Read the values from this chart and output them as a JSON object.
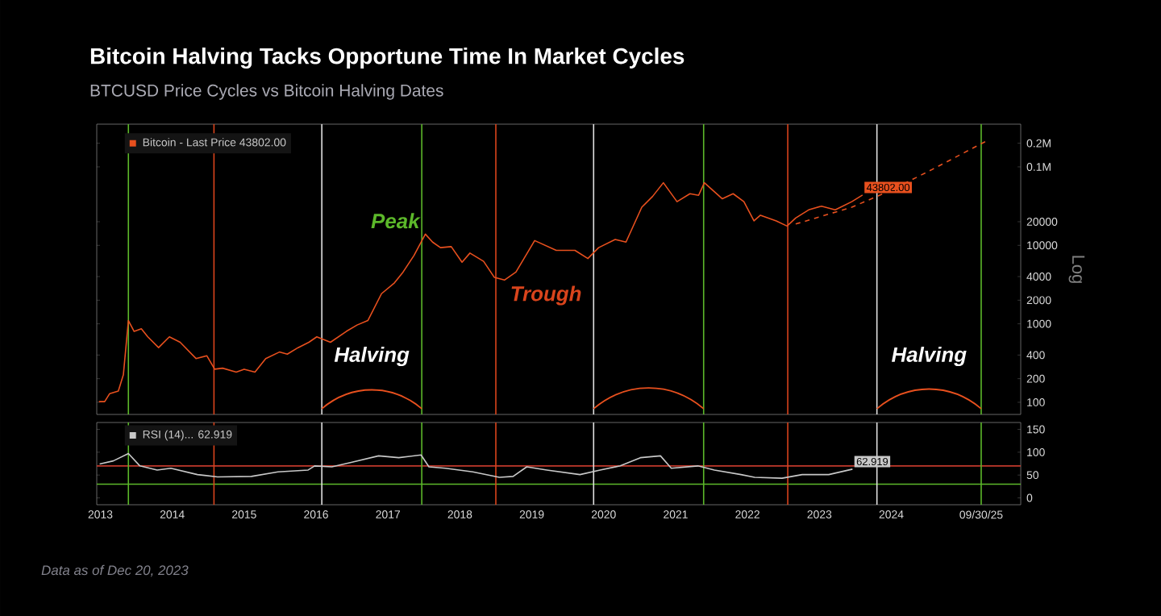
{
  "chart_data": [
    {
      "type": "line",
      "title": "Bitcoin Halving Tacks Opportune Time In Market Cycles",
      "subtitle": "BTCUSD Price Cycles vs Bitcoin Halving Dates",
      "ylabel": "Log",
      "log": "y",
      "xlim": [
        2013.45,
        2026.3
      ],
      "ylim": [
        70,
        350000
      ],
      "yticks": [
        100,
        200,
        400,
        1000,
        2000,
        4000,
        10000,
        20000,
        {
          "value": 100000,
          "label": "0.1M"
        },
        {
          "value": 200000,
          "label": "0.2M"
        }
      ],
      "tick_labels": "y",
      "legend": "top left",
      "series": [
        {
          "name": "Bitcoin - Last Price 43802.00",
          "color": "#e8501e",
          "x": [
            2013.48,
            2013.56,
            2013.63,
            2013.75,
            2013.82,
            2013.89,
            2013.97,
            2014.07,
            2014.16,
            2014.31,
            2014.46,
            2014.61,
            2014.83,
            2014.98,
            2015.09,
            2015.2,
            2015.39,
            2015.5,
            2015.65,
            2015.8,
            2015.99,
            2016.1,
            2016.25,
            2016.4,
            2016.51,
            2016.7,
            2016.92,
            2017.07,
            2017.22,
            2017.41,
            2017.59,
            2017.71,
            2017.86,
            2018.02,
            2018.12,
            2018.23,
            2018.38,
            2018.53,
            2018.64,
            2018.83,
            2018.98,
            2019.12,
            2019.28,
            2019.54,
            2019.84,
            2020.1,
            2020.28,
            2020.43,
            2020.66,
            2020.81,
            2021.03,
            2021.18,
            2021.33,
            2021.52,
            2021.7,
            2021.82,
            2021.9,
            2022.15,
            2022.3,
            2022.45,
            2022.59,
            2022.68,
            2022.9,
            2023.05,
            2023.17,
            2023.35,
            2023.53,
            2023.72,
            2023.95,
            2024.1
          ],
          "values": [
            102,
            102,
            129,
            139,
            224,
            1100,
            800,
            865,
            683,
            497,
            683,
            582,
            361,
            392,
            264,
            272,
            243,
            264,
            243,
            361,
            437,
            410,
            497,
            582,
            683,
            582,
            800,
            965,
            1100,
            2420,
            3330,
            4570,
            7380,
            13900,
            11000,
            9350,
            9630,
            6100,
            7970,
            6260,
            3900,
            3610,
            4570,
            11500,
            8640,
            8640,
            6800,
            9350,
            11900,
            11000,
            30600,
            42000,
            62800,
            36000,
            45500,
            43400,
            62800,
            39200,
            45500,
            36000,
            20500,
            24200,
            20500,
            17600,
            22300,
            28300,
            31600,
            28300,
            36000,
            43802
          ],
          "value_labels": [
            null,
            null,
            null,
            null,
            null,
            null,
            null,
            null,
            null,
            null,
            null,
            null,
            null,
            null,
            null,
            null,
            null,
            null,
            null,
            null,
            null,
            null,
            null,
            null,
            null,
            null,
            null,
            null,
            null,
            null,
            null,
            null,
            null,
            null,
            null,
            null,
            null,
            null,
            null,
            null,
            null,
            null,
            null,
            null,
            null,
            null,
            null,
            null,
            null,
            null,
            null,
            null,
            null,
            null,
            null,
            null,
            null,
            null,
            null,
            null,
            null,
            null,
            null,
            null,
            null,
            null,
            null,
            null,
            null,
            "43802.00"
          ]
        },
        {
          "color": "#e8501e",
          "line_style": "dashed",
          "x": [
            2023.17,
            2023.95,
            2024.47,
            2025.07,
            2025.82
          ],
          "values": [
            18700,
            30600,
            49000,
            92800,
            213000
          ]
        }
      ],
      "ref_lines": [
        {
          "axis": "x",
          "value": 2013.89,
          "color": "#5cb82a"
        },
        {
          "axis": "x",
          "value": 2015.08,
          "color": "#d9441c"
        },
        {
          "axis": "x",
          "value": 2016.58,
          "color": "#e0e0e0"
        },
        {
          "axis": "x",
          "value": 2017.97,
          "color": "#5cb82a"
        },
        {
          "axis": "x",
          "value": 2019.0,
          "color": "#d9441c"
        },
        {
          "axis": "x",
          "value": 2020.36,
          "color": "#e0e0e0"
        },
        {
          "axis": "x",
          "value": 2021.89,
          "color": "#5cb82a"
        },
        {
          "axis": "x",
          "value": 2023.06,
          "color": "#d9441c"
        },
        {
          "axis": "x",
          "value": 2024.3,
          "color": "#e0e0e0"
        },
        {
          "axis": "x",
          "value": 2025.75,
          "color": "#5cb82a"
        }
      ],
      "annotations": [
        "Halving",
        "Halving",
        {
          "text": "Peak",
          "x": 2018.02,
          "y": 13900
        },
        {
          "text": "Trough",
          "x": 2019.12,
          "y": 3610
        }
      ]
    },
    {
      "type": "line",
      "xlim": [
        2013.45,
        2026.3
      ],
      "ylim": [
        -15,
        165
      ],
      "yticks": [
        0,
        50,
        100,
        150
      ],
      "legend": "top left",
      "xticks": [
        {
          "value": 2013.5,
          "label": "2013"
        },
        {
          "value": 2014.5,
          "label": "2014"
        },
        {
          "value": 2015.5,
          "label": "2015"
        },
        {
          "value": 2016.5,
          "label": "2016"
        },
        {
          "value": 2017.5,
          "label": "2017"
        },
        {
          "value": 2018.5,
          "label": "2018"
        },
        {
          "value": 2019.5,
          "label": "2019"
        },
        {
          "value": 2020.5,
          "label": "2020"
        },
        {
          "value": 2021.5,
          "label": "2021"
        },
        {
          "value": 2022.5,
          "label": "2022"
        },
        {
          "value": 2023.5,
          "label": "2023"
        },
        {
          "value": 2024.5,
          "label": "2024"
        },
        {
          "value": 2025.75,
          "label": "09/30/25"
        }
      ],
      "series": [
        {
          "name": "RSI (14)... 62.919",
          "color": "#c8c8c8",
          "x": [
            2013.49,
            2013.68,
            2013.89,
            2014.05,
            2014.29,
            2014.48,
            2014.85,
            2015.13,
            2015.6,
            2015.97,
            2016.39,
            2016.48,
            2016.72,
            2017.0,
            2017.37,
            2017.65,
            2017.96,
            2018.07,
            2018.3,
            2018.68,
            2019.05,
            2019.24,
            2019.43,
            2019.71,
            2020.17,
            2020.45,
            2020.73,
            2021.01,
            2021.29,
            2021.44,
            2021.81,
            2022.04,
            2022.41,
            2022.6,
            2022.98,
            2023.26,
            2023.63,
            2023.96
          ],
          "values": [
            74,
            81,
            97,
            70,
            61,
            65,
            51,
            46,
            47,
            57,
            61,
            70,
            68,
            78,
            92,
            88,
            94,
            68,
            65,
            57,
            45,
            47,
            68,
            61,
            51,
            61,
            70,
            88,
            92,
            65,
            70,
            61,
            51,
            45,
            43,
            51,
            51,
            62.919
          ],
          "value_labels": [
            null,
            null,
            null,
            null,
            null,
            null,
            null,
            null,
            null,
            null,
            null,
            null,
            null,
            null,
            null,
            null,
            null,
            null,
            null,
            null,
            null,
            null,
            null,
            null,
            null,
            null,
            null,
            null,
            null,
            null,
            null,
            null,
            null,
            null,
            null,
            null,
            null,
            "62.919"
          ]
        }
      ],
      "ref_lines": [
        {
          "axis": "y",
          "value": 70,
          "color": "#c0392b"
        },
        {
          "axis": "y",
          "value": 30,
          "color": "#5cb82a"
        },
        {
          "axis": "x",
          "value": 2013.89,
          "color": "#5cb82a"
        },
        {
          "axis": "x",
          "value": 2015.08,
          "color": "#d9441c"
        },
        {
          "axis": "x",
          "value": 2016.58,
          "color": "#e0e0e0"
        },
        {
          "axis": "x",
          "value": 2017.97,
          "color": "#5cb82a"
        },
        {
          "axis": "x",
          "value": 2019.0,
          "color": "#d9441c"
        },
        {
          "axis": "x",
          "value": 2020.36,
          "color": "#e0e0e0"
        },
        {
          "axis": "x",
          "value": 2021.89,
          "color": "#5cb82a"
        },
        {
          "axis": "x",
          "value": 2023.06,
          "color": "#d9441c"
        },
        {
          "axis": "x",
          "value": 2024.3,
          "color": "#e0e0e0"
        },
        {
          "axis": "x",
          "value": 2025.75,
          "color": "#5cb82a"
        }
      ],
      "annotations": [
        "Data as of Dec 20, 2023"
      ]
    }
  ]
}
